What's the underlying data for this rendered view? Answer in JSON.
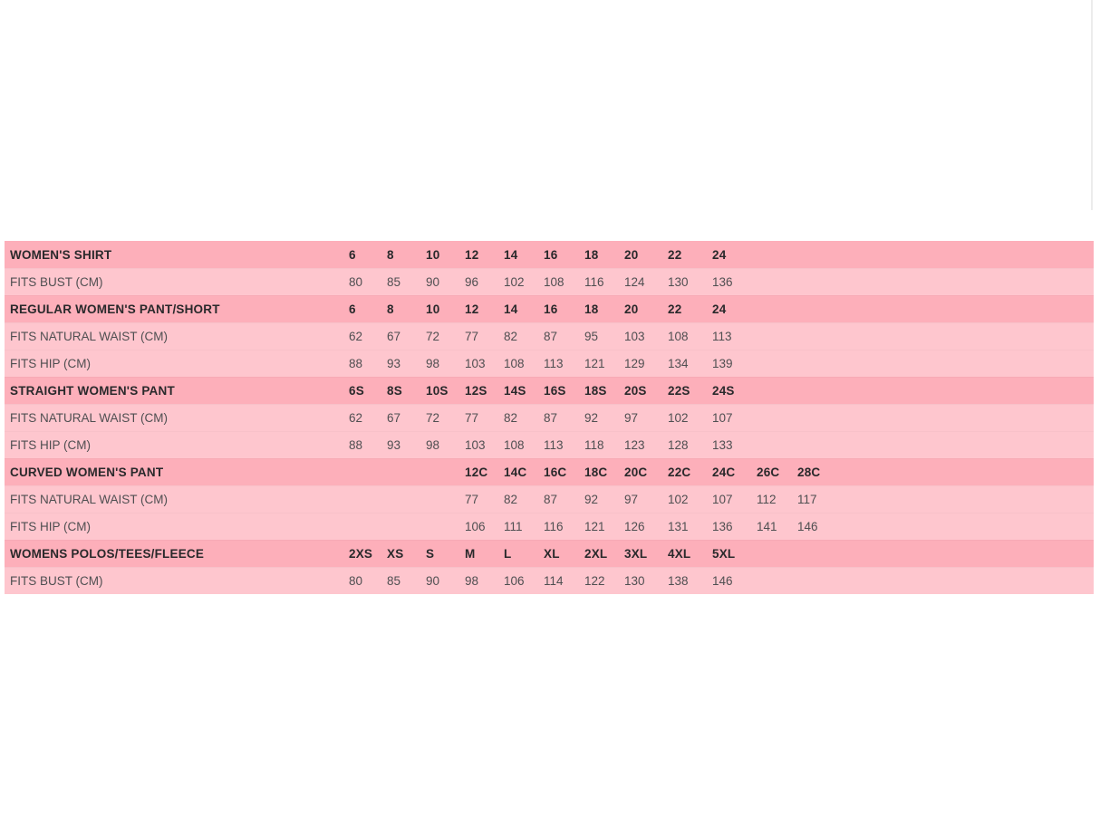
{
  "page": {
    "background_color": "#ffffff"
  },
  "colors": {
    "header_row_bg": "#fdafba",
    "data_row_bg": "#fec6ce",
    "header_text": "#29292b",
    "data_text": "#4f4f51",
    "scrollbar_track": "#ececec"
  },
  "chart_data": {
    "type": "table",
    "title": "",
    "rows": [
      {
        "type": "header",
        "label": "WOMEN'S SHIRT",
        "values": [
          "6",
          "8",
          "10",
          "12",
          "14",
          "16",
          "18",
          "20",
          "22",
          "24",
          "",
          ""
        ]
      },
      {
        "type": "data",
        "label": "FITS BUST (CM)",
        "values": [
          "80",
          "85",
          "90",
          "96",
          "102",
          "108",
          "116",
          "124",
          "130",
          "136",
          "",
          ""
        ]
      },
      {
        "type": "header",
        "label": "REGULAR WOMEN'S PANT/SHORT",
        "values": [
          "6",
          "8",
          "10",
          "12",
          "14",
          "16",
          "18",
          "20",
          "22",
          "24",
          "",
          ""
        ]
      },
      {
        "type": "data",
        "label": "FITS NATURAL WAIST (CM)",
        "values": [
          "62",
          "67",
          "72",
          "77",
          "82",
          "87",
          "95",
          "103",
          "108",
          "113",
          "",
          ""
        ]
      },
      {
        "type": "data",
        "label": "FITS HIP (CM)",
        "values": [
          "88",
          "93",
          "98",
          "103",
          "108",
          "113",
          "121",
          "129",
          "134",
          "139",
          "",
          ""
        ]
      },
      {
        "type": "header",
        "label": "STRAIGHT WOMEN'S PANT",
        "values": [
          "6S",
          "8S",
          "10S",
          "12S",
          "14S",
          "16S",
          "18S",
          "20S",
          "22S",
          "24S",
          "",
          ""
        ]
      },
      {
        "type": "data",
        "label": "FITS NATURAL WAIST (CM)",
        "values": [
          "62",
          "67",
          "72",
          "77",
          "82",
          "87",
          "92",
          "97",
          "102",
          "107",
          "",
          ""
        ]
      },
      {
        "type": "data",
        "label": "FITS HIP (CM)",
        "values": [
          "88",
          "93",
          "98",
          "103",
          "108",
          "113",
          "118",
          "123",
          "128",
          "133",
          "",
          ""
        ]
      },
      {
        "type": "header",
        "label": "CURVED WOMEN'S PANT",
        "values": [
          "",
          "",
          "",
          "12C",
          "14C",
          "16C",
          "18C",
          "20C",
          "22C",
          "24C",
          "26C",
          "28C"
        ]
      },
      {
        "type": "data",
        "label": "FITS NATURAL WAIST (CM)",
        "values": [
          "",
          "",
          "",
          "77",
          "82",
          "87",
          "92",
          "97",
          "102",
          "107",
          "112",
          "117"
        ]
      },
      {
        "type": "data",
        "label": "FITS HIP (CM)",
        "values": [
          "",
          "",
          "",
          "106",
          "111",
          "116",
          "121",
          "126",
          "131",
          "136",
          "141",
          "146"
        ]
      },
      {
        "type": "header",
        "label": "WOMENS POLOS/TEES/FLEECE",
        "values": [
          "2XS",
          "XS",
          "S",
          "M",
          "L",
          "XL",
          "2XL",
          "3XL",
          "4XL",
          "5XL",
          "",
          ""
        ]
      },
      {
        "type": "data",
        "label": "FITS BUST (CM)",
        "values": [
          "80",
          "85",
          "90",
          "98",
          "106",
          "114",
          "122",
          "130",
          "138",
          "146",
          "",
          ""
        ]
      }
    ]
  }
}
